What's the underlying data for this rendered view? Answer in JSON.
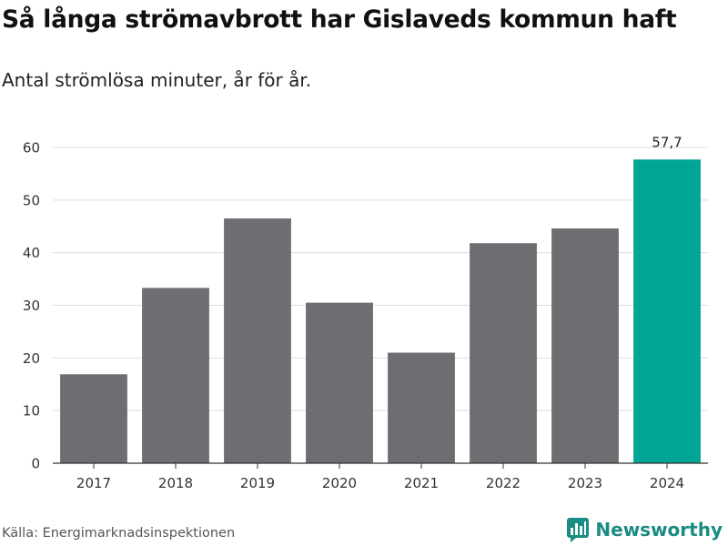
{
  "header": {
    "title": "Så långa strömavbrott har Gislaveds kommun haft",
    "subtitle": "Antal strömlösa minuter, år för år."
  },
  "footer": {
    "source": "Källa: Energimarknadsinspektionen",
    "brand": "Newsworthy",
    "brand_icon": "newsworthy-logo-icon"
  },
  "colors": {
    "bar": "#6e6d72",
    "highlight": "#00a595",
    "grid": "#dddddd",
    "brand": "#1a8c83"
  },
  "chart_data": {
    "type": "bar",
    "title": "Så långa strömavbrott har Gislaveds kommun haft",
    "subtitle": "Antal strömlösa minuter, år för år.",
    "xlabel": "",
    "ylabel": "",
    "categories": [
      "2017",
      "2018",
      "2019",
      "2020",
      "2021",
      "2022",
      "2023",
      "2024"
    ],
    "values": [
      16.9,
      33.3,
      46.5,
      30.5,
      21.0,
      41.8,
      44.6,
      57.7
    ],
    "highlight_index": 7,
    "data_labels": [
      {
        "index": 7,
        "text": "57,7"
      }
    ],
    "ylim": [
      0,
      60
    ],
    "yticks": [
      0,
      10,
      20,
      30,
      40,
      50,
      60
    ],
    "grid": true,
    "legend": "none"
  }
}
